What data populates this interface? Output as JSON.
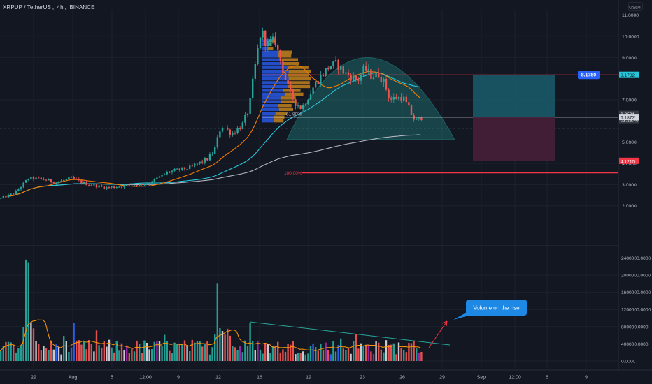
{
  "header": {
    "symbol": "XRPUP / TetherUS",
    "interval": "4h",
    "exchange": "BINANCE"
  },
  "currency_badge": "USDT",
  "colors": {
    "background": "#131722",
    "up": "#26a69a",
    "down": "#ef5350",
    "resistance_line": "#f23645",
    "support_line": "#ffffff",
    "ma_long": "#b2b5be",
    "ma_mid": "#26c6da",
    "ma_short": "#f57c00",
    "target_zone": "#1a5c6b",
    "stop_zone": "#4a1e3a",
    "label_blue": "#2962ff",
    "volume_ma": "#ff9800",
    "callout": "#1e88e5"
  },
  "chart_data": [
    {
      "type": "candlestick",
      "title": "XRPUP / TetherUS, 4h, BINANCE",
      "x_ticks": [
        "29",
        "Aug",
        "5",
        "12:00",
        "9",
        "12",
        "16",
        "19",
        "23",
        "26",
        "29",
        "Sep",
        "12:00",
        "6",
        "9"
      ],
      "y_ticks": [
        "11.0000",
        "10.0000",
        "9.0000",
        "7.0000",
        "5.0000",
        "4.0000",
        "3.0000",
        "2.0000"
      ],
      "ylim": [
        1.0,
        11.5
      ],
      "close_trend": [
        {
          "x": "29",
          "y": 2.5
        },
        {
          "x": "Aug",
          "y": 3.3
        },
        {
          "x": "5",
          "y": 3.0
        },
        {
          "x": "12:00",
          "y": 3.3
        },
        {
          "x": "9",
          "y": 4.2
        },
        {
          "x": "12",
          "y": 6.5
        },
        {
          "x": "16",
          "y": 9.5
        },
        {
          "x": "19",
          "y": 7.3
        },
        {
          "x": "23",
          "y": 8.3
        },
        {
          "x": "26",
          "y": 6.2
        }
      ],
      "price_labels": {
        "resistance": "8.1780",
        "resistance_axis": "8.1782",
        "current_price": "6.2531",
        "countdown": "01:13:46",
        "support": "6.1872",
        "target_low": "4.1210"
      },
      "fibonacci": [
        {
          "label": "61.80%",
          "value": 6.19
        },
        {
          "label": "100.00%",
          "value": 3.55
        }
      ],
      "position_tool": {
        "entry": 6.19,
        "target": 8.18,
        "stop": 4.12
      }
    },
    {
      "type": "bar",
      "series_type": "volume",
      "y_ticks": [
        "2400000.0000",
        "2000000.0000",
        "1600000.0000",
        "1200000.0000",
        "800000.0000",
        "400000.0000",
        "0.0000"
      ],
      "ylim": [
        0,
        2500000
      ],
      "annotation": "Volume on the rise"
    }
  ]
}
